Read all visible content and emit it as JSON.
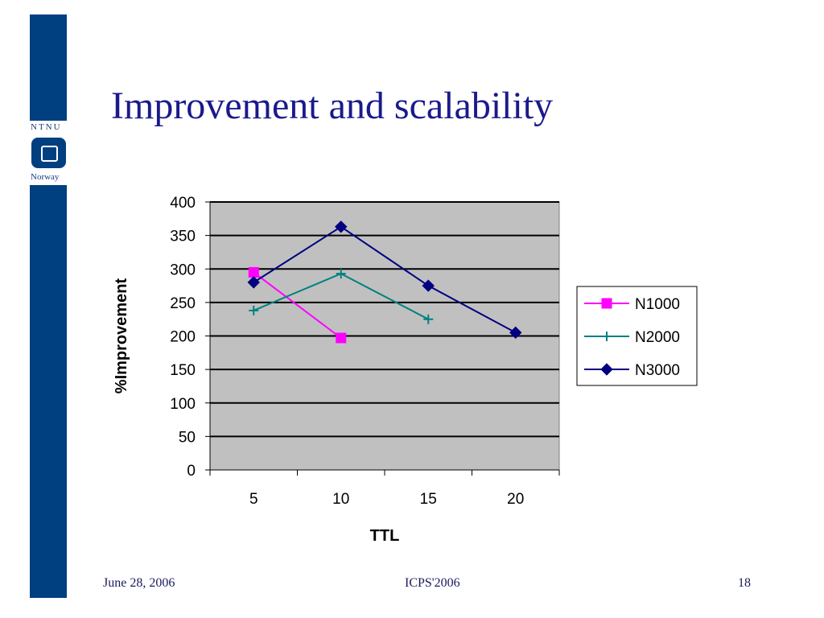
{
  "slide": {
    "title": "Improvement and scalability",
    "logo": {
      "top_text": "NTNU",
      "bottom_text": "Norway"
    },
    "footer": {
      "date": "June 28, 2006",
      "center": "ICPS'2006",
      "page": "18"
    }
  },
  "colors": {
    "title": "#1a1a8c",
    "sidebar": "#004080",
    "plot_bg": "#c0c0c0"
  },
  "chart_data": {
    "type": "line",
    "title": "",
    "xlabel": "TTL",
    "ylabel": "%Improvement",
    "categories": [
      "5",
      "10",
      "15",
      "20"
    ],
    "ylim": [
      0,
      400
    ],
    "yticks": [
      0,
      50,
      100,
      150,
      200,
      250,
      300,
      350,
      400
    ],
    "grid": true,
    "legend": "right",
    "series": [
      {
        "name": "N1000",
        "color": "#ff00ff",
        "marker": "square",
        "values": [
          295,
          197,
          null,
          null
        ]
      },
      {
        "name": "N2000",
        "color": "#008080",
        "marker": "plus",
        "values": [
          238,
          293,
          225,
          null
        ]
      },
      {
        "name": "N3000",
        "color": "#000080",
        "marker": "diamond",
        "values": [
          280,
          363,
          275,
          205
        ]
      }
    ]
  }
}
